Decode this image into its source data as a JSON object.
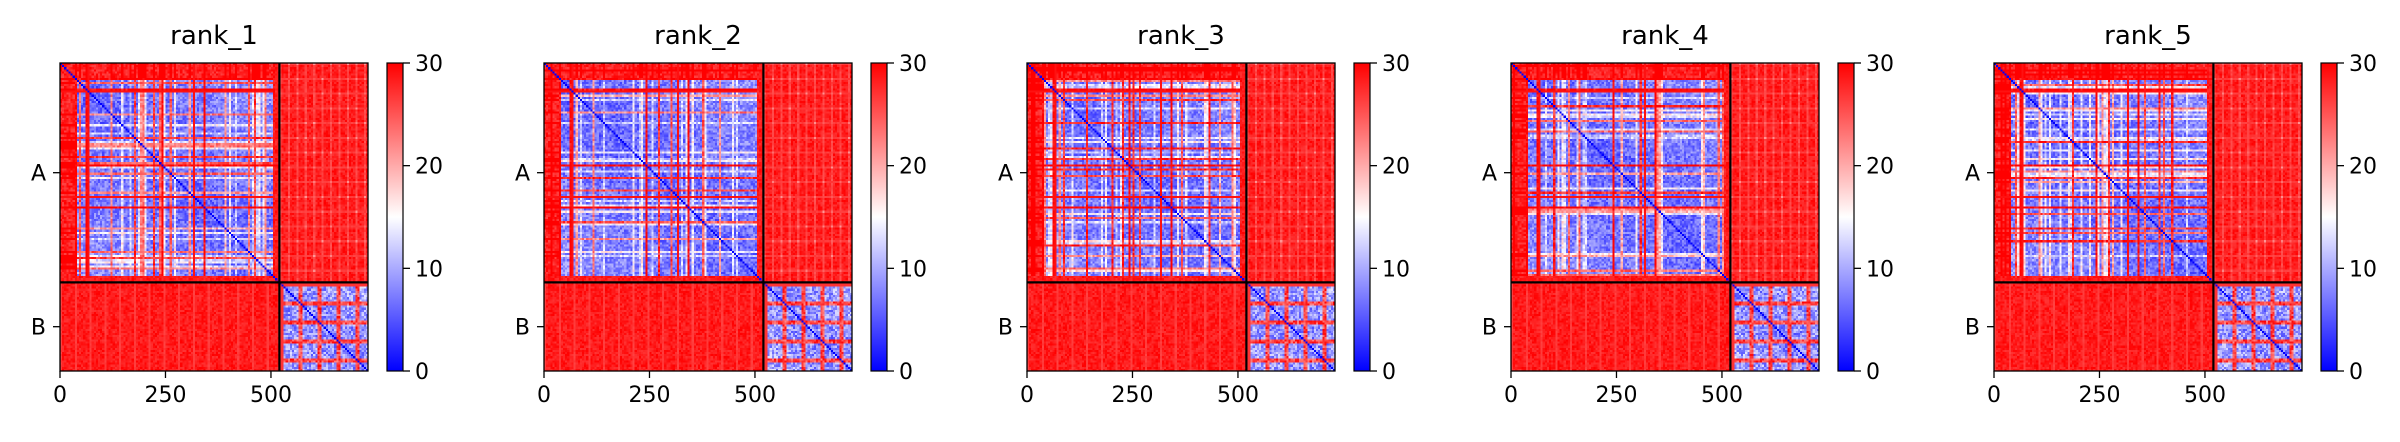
{
  "chart_data": [
    {
      "type": "heatmap",
      "title": "rank_1",
      "chains": [
        {
          "label": "A",
          "length": 520
        },
        {
          "label": "B",
          "length": 210
        }
      ],
      "x_ticks": [
        0,
        250,
        500
      ],
      "xlim": [
        0,
        730
      ],
      "colorbar": {
        "min": 0,
        "max": 30,
        "ticks": [
          0,
          10,
          20,
          30
        ],
        "colors": [
          "#0000ff",
          "#ffffff",
          "#ff0000"
        ]
      },
      "summary": {
        "intra_A_typical": 6,
        "intra_B_typical": 8,
        "inter_chain_typical": 30
      }
    },
    {
      "type": "heatmap",
      "title": "rank_2",
      "chains": [
        {
          "label": "A",
          "length": 520
        },
        {
          "label": "B",
          "length": 210
        }
      ],
      "x_ticks": [
        0,
        250,
        500
      ],
      "xlim": [
        0,
        730
      ],
      "colorbar": {
        "min": 0,
        "max": 30,
        "ticks": [
          0,
          10,
          20,
          30
        ],
        "colors": [
          "#0000ff",
          "#ffffff",
          "#ff0000"
        ]
      },
      "summary": {
        "intra_A_typical": 6,
        "intra_B_typical": 8,
        "inter_chain_typical": 30
      }
    },
    {
      "type": "heatmap",
      "title": "rank_3",
      "chains": [
        {
          "label": "A",
          "length": 520
        },
        {
          "label": "B",
          "length": 210
        }
      ],
      "x_ticks": [
        0,
        250,
        500
      ],
      "xlim": [
        0,
        730
      ],
      "colorbar": {
        "min": 0,
        "max": 30,
        "ticks": [
          0,
          10,
          20,
          30
        ],
        "colors": [
          "#0000ff",
          "#ffffff",
          "#ff0000"
        ]
      },
      "summary": {
        "intra_A_typical": 6,
        "intra_B_typical": 8,
        "inter_chain_typical": 30
      }
    },
    {
      "type": "heatmap",
      "title": "rank_4",
      "chains": [
        {
          "label": "A",
          "length": 520
        },
        {
          "label": "B",
          "length": 210
        }
      ],
      "x_ticks": [
        0,
        250,
        500
      ],
      "xlim": [
        0,
        730
      ],
      "colorbar": {
        "min": 0,
        "max": 30,
        "ticks": [
          0,
          10,
          20,
          30
        ],
        "colors": [
          "#0000ff",
          "#ffffff",
          "#ff0000"
        ]
      },
      "summary": {
        "intra_A_typical": 6,
        "intra_B_typical": 8,
        "inter_chain_typical": 30
      }
    },
    {
      "type": "heatmap",
      "title": "rank_5",
      "chains": [
        {
          "label": "A",
          "length": 520
        },
        {
          "label": "B",
          "length": 210
        }
      ],
      "x_ticks": [
        0,
        250,
        500
      ],
      "xlim": [
        0,
        730
      ],
      "colorbar": {
        "min": 0,
        "max": 30,
        "ticks": [
          0,
          10,
          20,
          30
        ],
        "colors": [
          "#0000ff",
          "#ffffff",
          "#ff0000"
        ]
      },
      "summary": {
        "intra_A_typical": 6,
        "intra_B_typical": 8,
        "inter_chain_typical": 30
      }
    }
  ]
}
